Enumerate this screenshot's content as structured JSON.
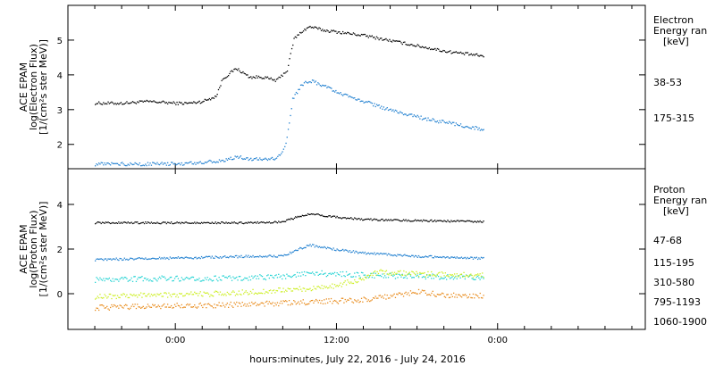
{
  "chart_data": [
    {
      "type": "scatter",
      "panel": "electron",
      "ylabel_lines": [
        "ACE EPAM",
        "log(Electron Flux)",
        "[1/(cm²s ster MeV)]"
      ],
      "legend_title": [
        "Electron",
        "Energy ran",
        "[keV]"
      ],
      "ylim": [
        1.3,
        6.0
      ],
      "yticks": [
        2,
        3,
        4,
        5
      ],
      "series": [
        {
          "name": "38-53",
          "color": "#000000",
          "points": [
            [
              -6,
              3.2
            ],
            [
              -4,
              3.2
            ],
            [
              -2,
              3.25
            ],
            [
              0,
              3.2
            ],
            [
              1,
              3.2
            ],
            [
              2,
              3.25
            ],
            [
              3,
              3.4
            ],
            [
              3.5,
              3.9
            ],
            [
              4.5,
              4.2
            ],
            [
              5.5,
              3.95
            ],
            [
              6.5,
              3.95
            ],
            [
              7.5,
              3.85
            ],
            [
              8.3,
              4.15
            ],
            [
              8.8,
              5.05
            ],
            [
              9.5,
              5.3
            ],
            [
              10,
              5.4
            ],
            [
              10.5,
              5.35
            ],
            [
              11,
              5.3
            ],
            [
              12,
              5.25
            ],
            [
              14,
              5.15
            ],
            [
              16,
              5.0
            ],
            [
              18,
              4.85
            ],
            [
              20,
              4.7
            ],
            [
              22,
              4.6
            ],
            [
              23,
              4.55
            ]
          ]
        },
        {
          "name": "175-315",
          "color": "#1f7fd0",
          "points": [
            [
              -6,
              1.45
            ],
            [
              -4,
              1.45
            ],
            [
              -2,
              1.45
            ],
            [
              0,
              1.45
            ],
            [
              2,
              1.5
            ],
            [
              3.5,
              1.55
            ],
            [
              4.5,
              1.65
            ],
            [
              5.5,
              1.6
            ],
            [
              6.5,
              1.6
            ],
            [
              7.5,
              1.6
            ],
            [
              8.2,
              2.0
            ],
            [
              8.7,
              3.3
            ],
            [
              9.3,
              3.7
            ],
            [
              10,
              3.85
            ],
            [
              11,
              3.7
            ],
            [
              12,
              3.5
            ],
            [
              14,
              3.25
            ],
            [
              16,
              3.0
            ],
            [
              18,
              2.8
            ],
            [
              20,
              2.65
            ],
            [
              22,
              2.5
            ],
            [
              23,
              2.45
            ]
          ]
        }
      ]
    },
    {
      "type": "scatter",
      "panel": "proton",
      "ylabel_lines": [
        "ACE EPAM",
        "log(Proton Flux)",
        "[1/(cm²s ster MeV)]"
      ],
      "legend_title": [
        "Proton",
        "Energy ran",
        "[keV]"
      ],
      "ylim": [
        -1.6,
        5.6
      ],
      "yticks": [
        0,
        2,
        4
      ],
      "series": [
        {
          "name": "47-68",
          "color": "#000000",
          "points": [
            [
              -6,
              3.2
            ],
            [
              -2,
              3.2
            ],
            [
              2,
              3.2
            ],
            [
              6,
              3.2
            ],
            [
              8,
              3.25
            ],
            [
              9,
              3.45
            ],
            [
              10,
              3.6
            ],
            [
              12,
              3.45
            ],
            [
              14,
              3.35
            ],
            [
              18,
              3.3
            ],
            [
              23,
              3.25
            ]
          ]
        },
        {
          "name": "115-195",
          "color": "#1f7fd0",
          "points": [
            [
              -6,
              1.55
            ],
            [
              -2,
              1.6
            ],
            [
              2,
              1.65
            ],
            [
              6,
              1.7
            ],
            [
              8,
              1.7
            ],
            [
              9,
              2.0
            ],
            [
              10,
              2.2
            ],
            [
              12,
              2.0
            ],
            [
              14,
              1.85
            ],
            [
              18,
              1.7
            ],
            [
              23,
              1.6
            ]
          ]
        },
        {
          "name": "310-580",
          "color": "#22d3d3",
          "points": [
            [
              -6,
              0.65
            ],
            [
              -2,
              0.7
            ],
            [
              2,
              0.7
            ],
            [
              6,
              0.75
            ],
            [
              8,
              0.8
            ],
            [
              10,
              0.95
            ],
            [
              12,
              0.9
            ],
            [
              14,
              0.85
            ],
            [
              18,
              0.8
            ],
            [
              23,
              0.75
            ]
          ]
        },
        {
          "name": "795-1193",
          "color": "#ccee22",
          "points": [
            [
              -6,
              -0.1
            ],
            [
              -2,
              -0.05
            ],
            [
              2,
              0.0
            ],
            [
              6,
              0.1
            ],
            [
              10,
              0.25
            ],
            [
              12,
              0.4
            ],
            [
              14,
              0.7
            ],
            [
              15,
              1.0
            ],
            [
              18,
              0.9
            ],
            [
              23,
              0.85
            ]
          ]
        },
        {
          "name": "1060-1900",
          "color": "#e88a1a",
          "points": [
            [
              -6,
              -0.6
            ],
            [
              -2,
              -0.55
            ],
            [
              2,
              -0.5
            ],
            [
              6,
              -0.45
            ],
            [
              10,
              -0.35
            ],
            [
              14,
              -0.25
            ],
            [
              16,
              -0.1
            ],
            [
              18,
              0.1
            ],
            [
              20,
              -0.05
            ],
            [
              23,
              -0.05
            ]
          ]
        }
      ]
    }
  ],
  "x_axis": {
    "label": "hours:minutes, July 22, 2016 - July 24, 2016",
    "xlim": [
      -8,
      35
    ],
    "ticks": [
      {
        "value": 0,
        "label": "0:00"
      },
      {
        "value": 12,
        "label": "12:00"
      },
      {
        "value": 24,
        "label": "0:00"
      }
    ]
  }
}
